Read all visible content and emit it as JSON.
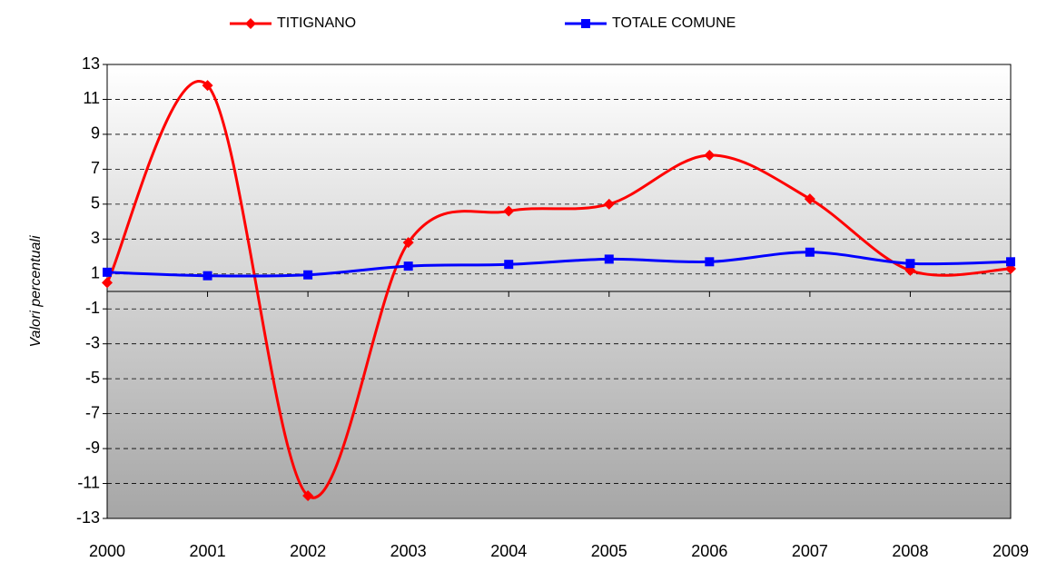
{
  "chart_data": {
    "type": "line",
    "y_label": "Valori percentuali",
    "categories": [
      "2000",
      "2001",
      "2002",
      "2003",
      "2004",
      "2005",
      "2006",
      "2007",
      "2008",
      "2009"
    ],
    "series": [
      {
        "name": "TITIGNANO",
        "color": "#ff0000",
        "marker": "diamond",
        "values": [
          0.5,
          11.8,
          -11.7,
          2.8,
          4.6,
          5.0,
          7.8,
          5.3,
          1.2,
          1.3
        ]
      },
      {
        "name": "TOTALE COMUNE",
        "color": "#0000ff",
        "marker": "square",
        "values": [
          1.1,
          0.9,
          0.95,
          1.45,
          1.55,
          1.85,
          1.7,
          2.25,
          1.6,
          1.7
        ]
      }
    ],
    "ylim": [
      -13,
      13
    ],
    "yticks": [
      -13,
      -11,
      -9,
      -7,
      -5,
      -3,
      -1,
      1,
      3,
      5,
      7,
      9,
      11,
      13
    ],
    "grid": true,
    "smooth": true,
    "legend": "top"
  }
}
